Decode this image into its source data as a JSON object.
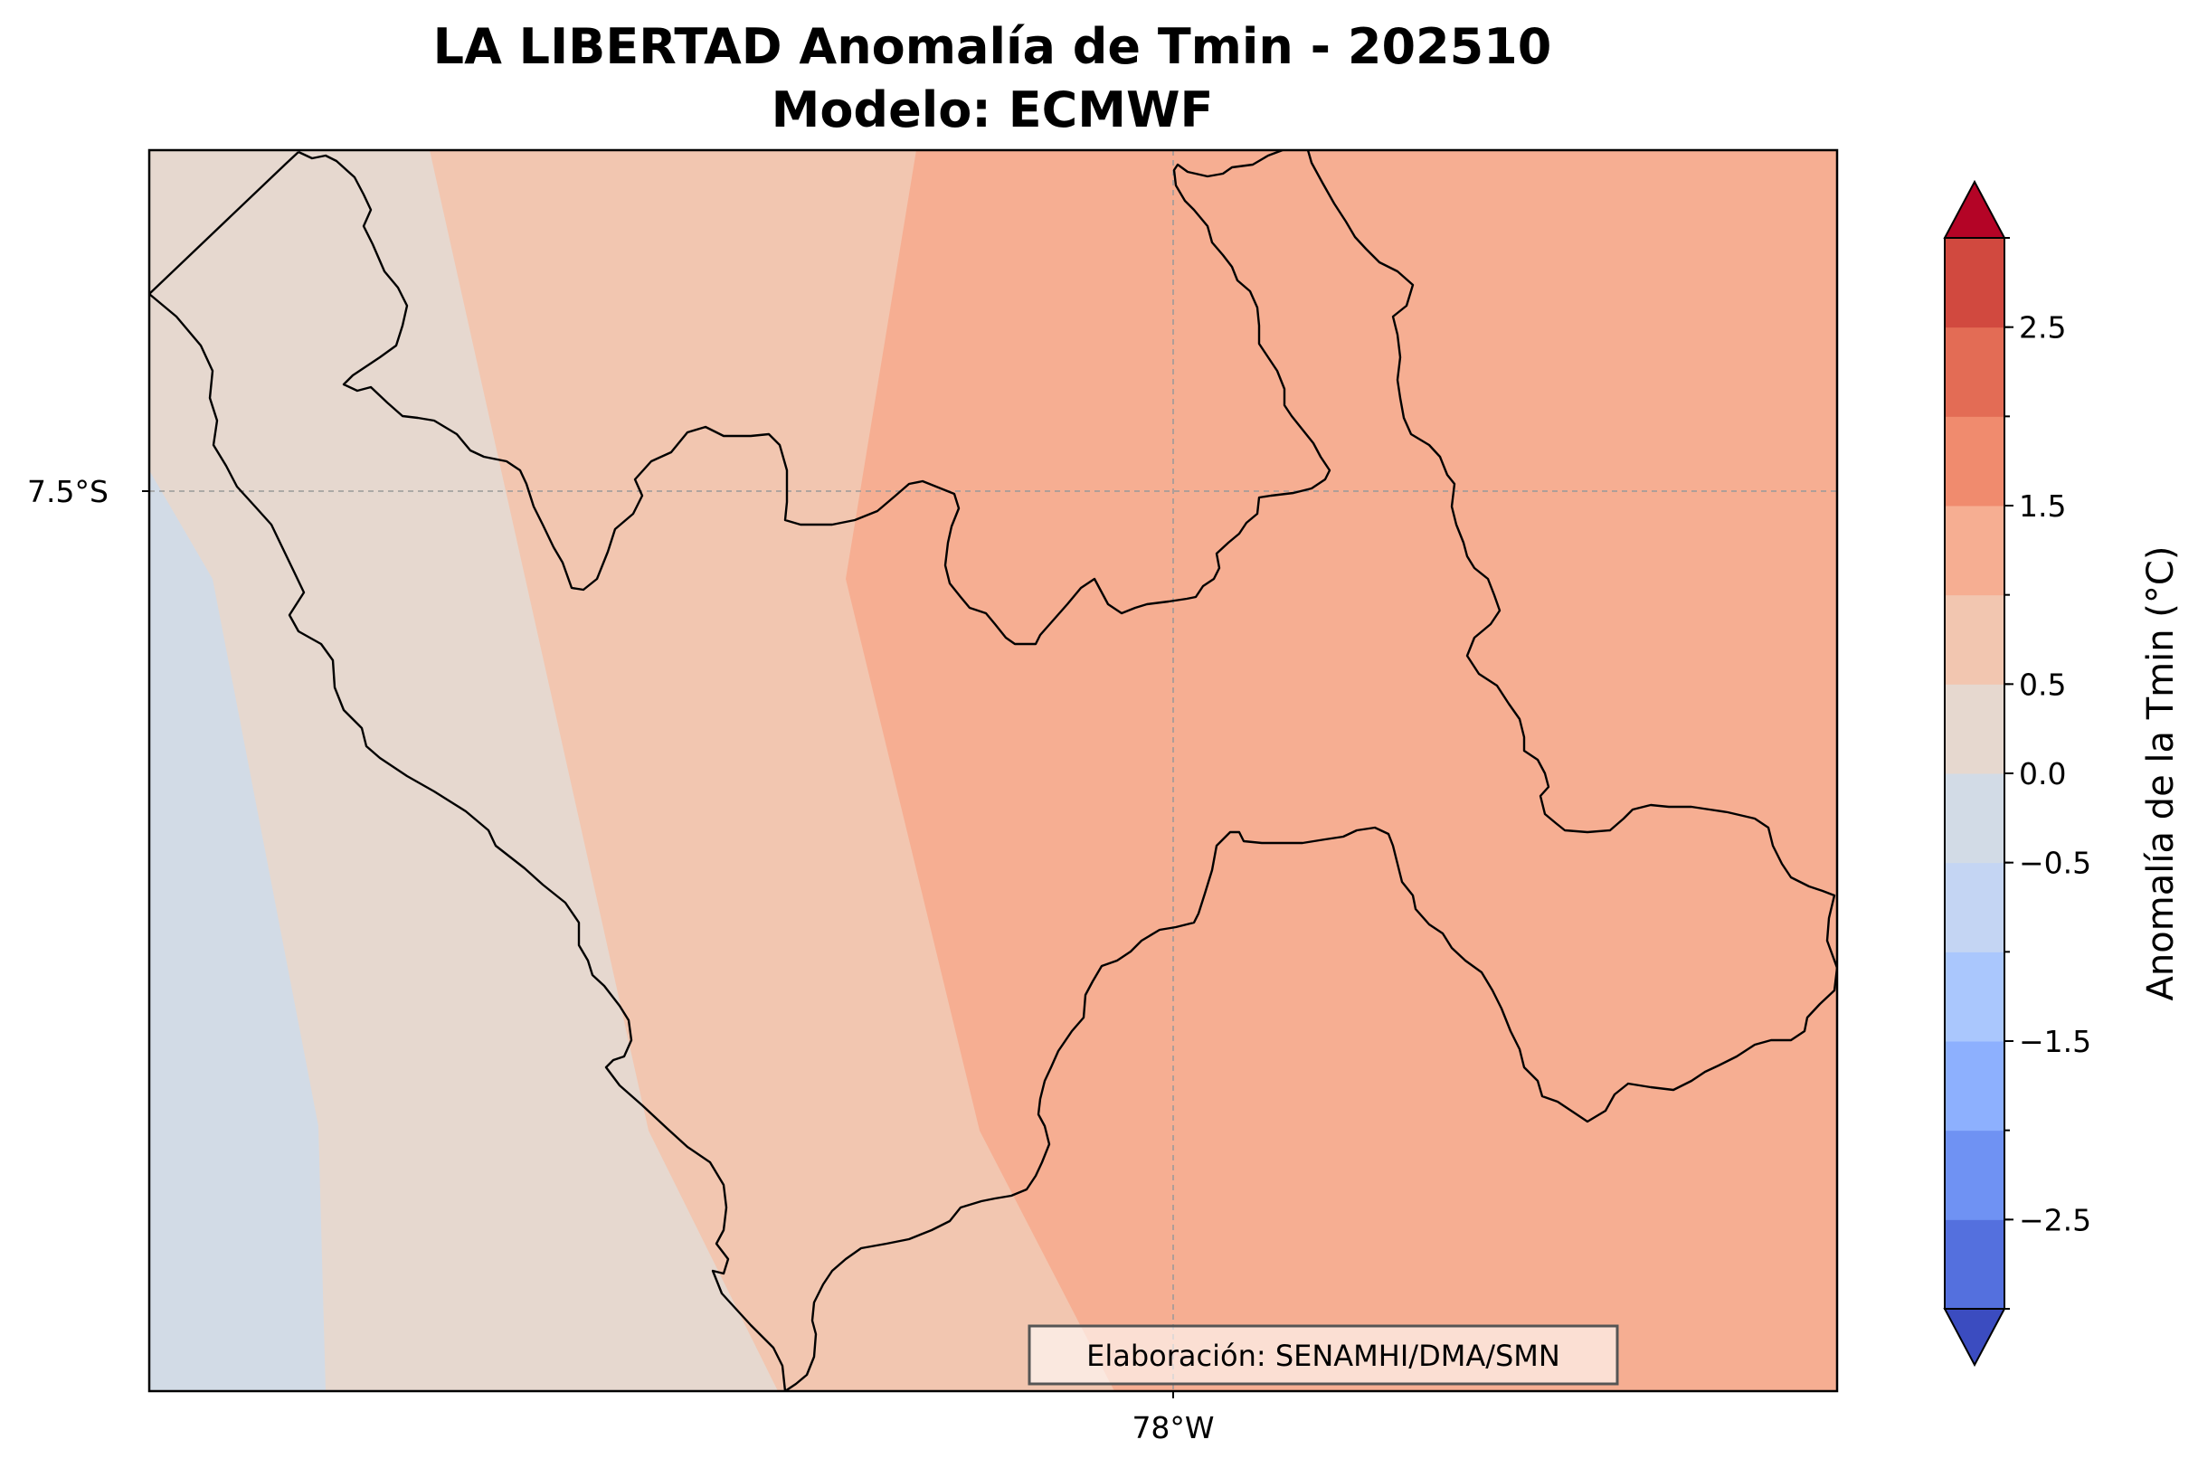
{
  "map": {
    "title_line1": "LA LIBERTAD Anomalía de Tmin - 202510",
    "title_line2": "Modelo: ECMWF",
    "lat_label": "7.5°S",
    "lon_label": "78°W",
    "credit": "Elaboración: SENAMHI/DMA/SMN",
    "regions": [
      {
        "name": "Tmin anomaly -0.5 to 0.0 °C (coastal ocean)",
        "color": "#d2dbe6"
      },
      {
        "name": "Tmin anomaly 0.0 to 0.5 °C",
        "color": "#e6d8cf"
      },
      {
        "name": "Tmin anomaly 0.5 to 1.0 °C",
        "color": "#f2c6b0"
      },
      {
        "name": "Tmin anomaly 1.0 to 1.5 °C",
        "color": "#f6ae92"
      }
    ]
  },
  "colorbar": {
    "label": "Anomalía de la Tmin (°C)",
    "tick_labels": [
      "2.5",
      "1.5",
      "0.5",
      "0.0",
      "−0.5",
      "−1.5",
      "−2.5"
    ],
    "tick_values": [
      2.5,
      1.5,
      0.5,
      0.0,
      -0.5,
      -1.5,
      -2.5
    ],
    "levels": [
      -3.0,
      -2.5,
      -2.0,
      -1.5,
      -1.0,
      -0.5,
      0.0,
      0.5,
      1.0,
      1.5,
      2.0,
      2.5,
      3.0
    ],
    "colors": [
      "#3b4cc0",
      "#5470de",
      "#6f92f3",
      "#8db0fe",
      "#aac7fd",
      "#c4d5f3",
      "#d2dbe6",
      "#e6d8cf",
      "#f2c6b0",
      "#f6ae92",
      "#f08b6e",
      "#e36c55",
      "#d1493f",
      "#b40426"
    ],
    "extend_low_color": "#3b4cc0",
    "extend_high_color": "#b40426"
  }
}
